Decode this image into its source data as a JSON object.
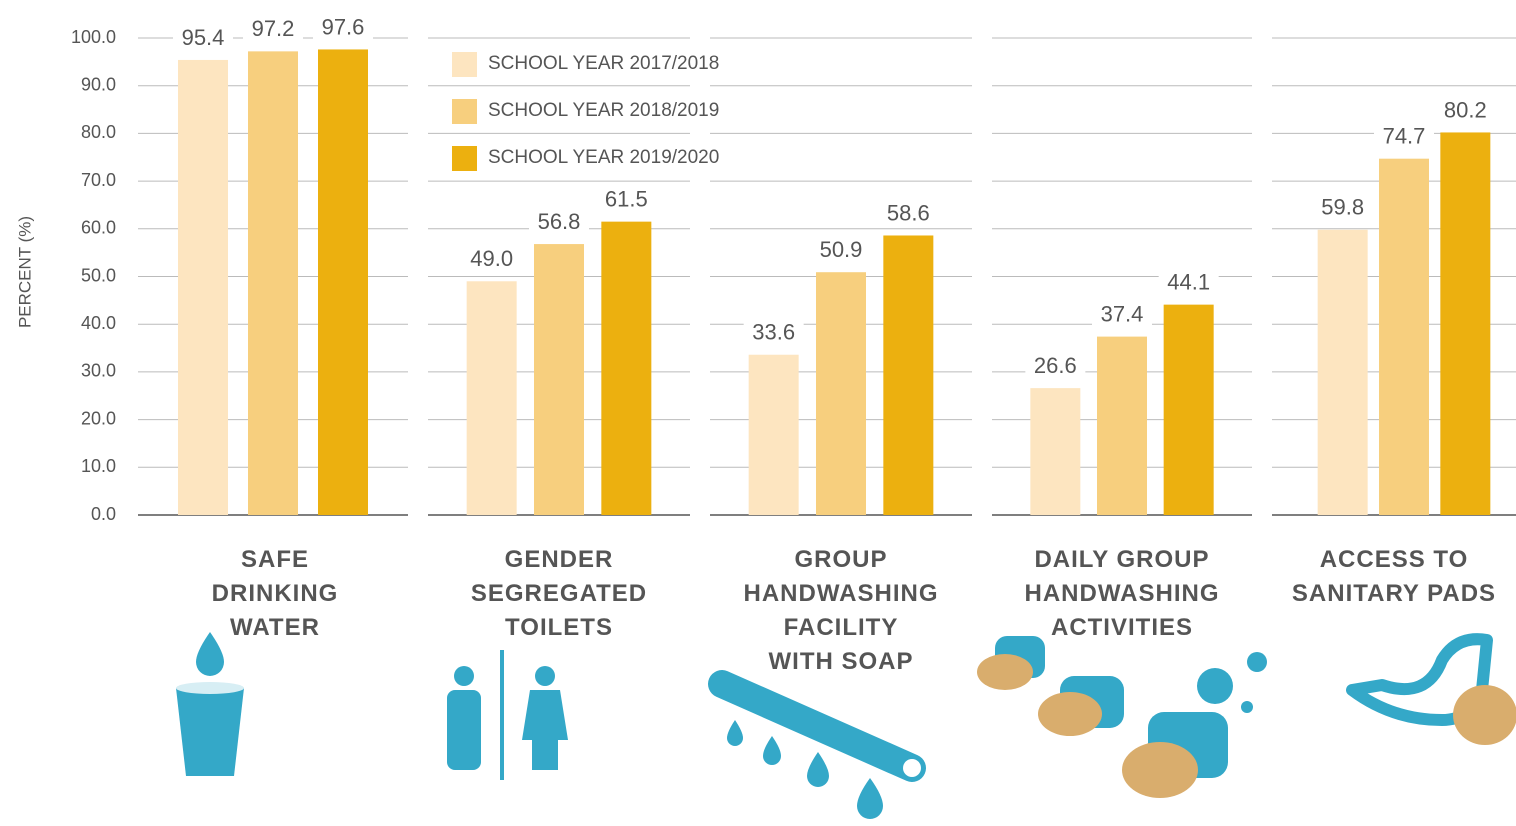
{
  "chart_data": {
    "type": "bar",
    "y_label": "PERCENT (%)",
    "categories": [
      "SAFE\nDRINKING\nWATER",
      "GENDER\nSEGREGATED\nTOILETS",
      "GROUP\nHANDWASHING\nFACILITY\nWITH SOAP",
      "DAILY GROUP\nHANDWASHING\nACTIVITIES",
      "ACCESS TO\nSANITARY PADS"
    ],
    "series": [
      {
        "name": "SCHOOL YEAR 2017/2018",
        "color": "#fde5c0",
        "values": [
          95.4,
          49.0,
          33.6,
          26.6,
          59.8
        ],
        "value_labels": [
          "95.4",
          "49.0",
          "33.6",
          "26.6",
          "59.8"
        ]
      },
      {
        "name": "SCHOOL YEAR 2018/2019",
        "color": "#f7cf7e",
        "values": [
          97.2,
          56.8,
          50.9,
          37.4,
          74.7
        ],
        "value_labels": [
          "97.2",
          "56.8",
          "50.9",
          "37.4",
          "74.7"
        ]
      },
      {
        "name": "SCHOOL YEAR 2019/2020",
        "color": "#ecb00f",
        "values": [
          97.6,
          61.5,
          58.6,
          44.1,
          80.2
        ],
        "value_labels": [
          "97.6",
          "61.5",
          "58.6",
          "44.1",
          "80.2"
        ]
      }
    ],
    "ylim": [
      0,
      100
    ],
    "yticks": [
      {
        "value": 0,
        "label": "0.0"
      },
      {
        "value": 10,
        "label": "10.0"
      },
      {
        "value": 20,
        "label": "20.0"
      },
      {
        "value": 30,
        "label": "30.0"
      },
      {
        "value": 40,
        "label": "40.0"
      },
      {
        "value": 50,
        "label": "50.0"
      },
      {
        "value": 60,
        "label": "60.0"
      },
      {
        "value": 70,
        "label": "70.0"
      },
      {
        "value": 80,
        "label": "80.0"
      },
      {
        "value": 90,
        "label": "90.0"
      },
      {
        "value": 100,
        "label": "100.0"
      }
    ],
    "grid": true,
    "legend": "top-left"
  }
}
